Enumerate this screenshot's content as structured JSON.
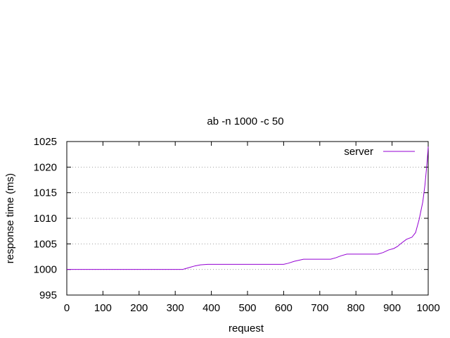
{
  "chart_data": {
    "type": "line",
    "title": "ab -n 1000 -c 50",
    "xlabel": "request",
    "ylabel": "response time (ms)",
    "xlim": [
      0,
      1000
    ],
    "ylim": [
      995,
      1025
    ],
    "xticks": [
      0,
      100,
      200,
      300,
      400,
      500,
      600,
      700,
      800,
      900,
      1000
    ],
    "yticks": [
      995,
      1000,
      1005,
      1010,
      1015,
      1020,
      1025
    ],
    "grid": "horizontal dotted",
    "legend_position": "top-right",
    "series": [
      {
        "name": "server",
        "color": "#9400d3",
        "x": [
          0,
          320,
          330,
          340,
          355,
          370,
          390,
          600,
          612,
          630,
          655,
          730,
          745,
          760,
          775,
          860,
          875,
          890,
          905,
          915,
          925,
          940,
          955,
          965,
          975,
          985,
          991,
          995,
          998,
          1000
        ],
        "y": [
          1000,
          1000,
          1000.2,
          1000.4,
          1000.7,
          1000.9,
          1001,
          1001,
          1001.2,
          1001.6,
          1002,
          1002,
          1002.3,
          1002.7,
          1003,
          1003,
          1003.3,
          1003.8,
          1004.1,
          1004.5,
          1005.1,
          1005.9,
          1006.3,
          1007.2,
          1009.8,
          1013.2,
          1016.5,
          1019.5,
          1022,
          1024
        ]
      }
    ]
  }
}
